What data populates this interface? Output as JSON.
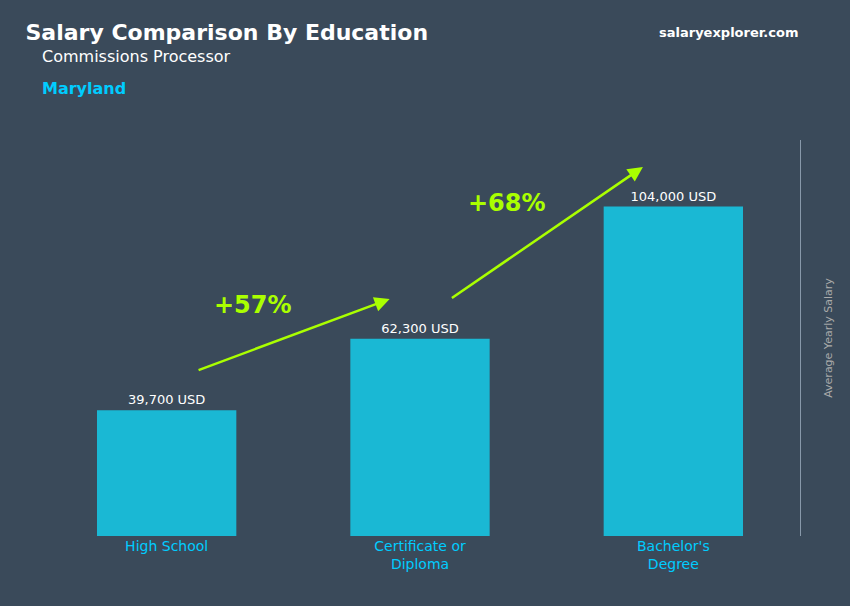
{
  "chart_data": {
    "type": "bar",
    "title": "Salary Comparison By Education",
    "subtitle": "Commissions Processor",
    "ylabel": "Average Yearly Salary",
    "categories": [
      "High School",
      "Certificate or\nDiploma",
      "Bachelor's\nDegree"
    ],
    "values": [
      39700,
      62300,
      104000
    ],
    "value_labels": [
      "39,700 USD",
      "62,300 USD",
      "104,000 USD"
    ],
    "data_labels": true,
    "color": "#1ab8d4",
    "ylim": [
      0,
      125000
    ],
    "tick_labels": "x",
    "grid": false,
    "annotations": [
      {
        "text": "Maryland"
      },
      {
        "text": "salaryexplorer.com"
      },
      {
        "text": "+57%",
        "from": "High School",
        "to": "Certificate or\nDiploma"
      },
      {
        "text": "+68%",
        "from": "Certificate or\nDiploma",
        "to": "Bachelor's\nDegree"
      }
    ]
  }
}
